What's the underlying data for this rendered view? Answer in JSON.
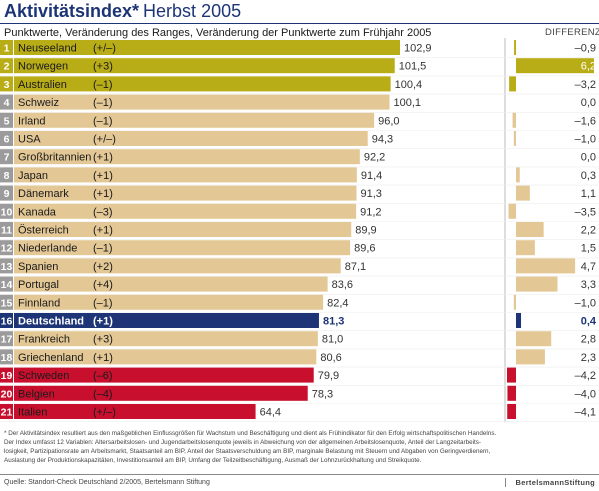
{
  "header": {
    "title_main": "Aktivitätsindex*",
    "title_sub": "Herbst 2005",
    "subtitle": "Punktwerte, Veränderung des Ranges, Veränderung der Punktwerte zum Frühjahr 2005",
    "diff_label": "DIFFERENZ"
  },
  "colors": {
    "beige": "#e3c896",
    "gold": "#b9ad17",
    "navy": "#1d3576",
    "red": "#c8102e",
    "rank_gray": "#9b9b9b",
    "rank_gold": "#b9ad17",
    "rank_navy": "#1d3576",
    "rank_red": "#c8102e"
  },
  "chart_data": {
    "type": "bar",
    "title": "Aktivitätsindex* Herbst 2005",
    "subtitle": "Punktwerte, Veränderung des Ranges, Veränderung der Punktwerte zum Frühjahr 2005",
    "value_scale_reference": 102.9,
    "diff_label": "DIFFERENZ",
    "diff_scale_max_abs": 6.2,
    "rows": [
      {
        "rank": "1",
        "country": "Neuseeland",
        "rank_change": "(+/–)",
        "value": 102.9,
        "value_label": "102,9",
        "diff": -0.9,
        "diff_label": "–0,9",
        "color": "gold",
        "rank_color": "rank_gold"
      },
      {
        "rank": "2",
        "country": "Norwegen",
        "rank_change": "(+3)",
        "value": 101.5,
        "value_label": "101,5",
        "diff": 6.2,
        "diff_label": "6,2",
        "color": "gold",
        "rank_color": "rank_gold"
      },
      {
        "rank": "3",
        "country": "Australien",
        "rank_change": "(–1)",
        "value": 100.4,
        "value_label": "100,4",
        "diff": -3.2,
        "diff_label": "–3,2",
        "color": "gold",
        "rank_color": "rank_gold"
      },
      {
        "rank": "4",
        "country": "Schweiz",
        "rank_change": "(–1)",
        "value": 100.1,
        "value_label": "100,1",
        "diff": 0.0,
        "diff_label": "0,0",
        "color": "beige",
        "rank_color": "rank_gray"
      },
      {
        "rank": "5",
        "country": "Irland",
        "rank_change": "(–1)",
        "value": 96.0,
        "value_label": "96,0",
        "diff": -1.6,
        "diff_label": "–1,6",
        "color": "beige",
        "rank_color": "rank_gray"
      },
      {
        "rank": "6",
        "country": "USA",
        "rank_change": "(+/–)",
        "value": 94.3,
        "value_label": "94,3",
        "diff": -1.0,
        "diff_label": "–1,0",
        "color": "beige",
        "rank_color": "rank_gray"
      },
      {
        "rank": "7",
        "country": "Großbritannien",
        "rank_change": "(+1)",
        "value": 92.2,
        "value_label": "92,2",
        "diff": 0.0,
        "diff_label": "0,0",
        "color": "beige",
        "rank_color": "rank_gray"
      },
      {
        "rank": "8",
        "country": "Japan",
        "rank_change": "(+1)",
        "value": 91.4,
        "value_label": "91,4",
        "diff": 0.3,
        "diff_label": "0,3",
        "color": "beige",
        "rank_color": "rank_gray"
      },
      {
        "rank": "9",
        "country": "Dänemark",
        "rank_change": "(+1)",
        "value": 91.3,
        "value_label": "91,3",
        "diff": 1.1,
        "diff_label": "1,1",
        "color": "beige",
        "rank_color": "rank_gray"
      },
      {
        "rank": "10",
        "country": "Kanada",
        "rank_change": "(–3)",
        "value": 91.2,
        "value_label": "91,2",
        "diff": -3.5,
        "diff_label": "–3,5",
        "color": "beige",
        "rank_color": "rank_gray"
      },
      {
        "rank": "11",
        "country": "Österreich",
        "rank_change": "(+1)",
        "value": 89.9,
        "value_label": "89,9",
        "diff": 2.2,
        "diff_label": "2,2",
        "color": "beige",
        "rank_color": "rank_gray"
      },
      {
        "rank": "12",
        "country": "Niederlande",
        "rank_change": "(–1)",
        "value": 89.6,
        "value_label": "89,6",
        "diff": 1.5,
        "diff_label": "1,5",
        "color": "beige",
        "rank_color": "rank_gray"
      },
      {
        "rank": "13",
        "country": "Spanien",
        "rank_change": "(+2)",
        "value": 87.1,
        "value_label": "87,1",
        "diff": 4.7,
        "diff_label": "4,7",
        "color": "beige",
        "rank_color": "rank_gray"
      },
      {
        "rank": "14",
        "country": "Portugal",
        "rank_change": "(+4)",
        "value": 83.6,
        "value_label": "83,6",
        "diff": 3.3,
        "diff_label": "3,3",
        "color": "beige",
        "rank_color": "rank_gray"
      },
      {
        "rank": "15",
        "country": "Finnland",
        "rank_change": "(–1)",
        "value": 82.4,
        "value_label": "82,4",
        "diff": -1.0,
        "diff_label": "–1,0",
        "color": "beige",
        "rank_color": "rank_gray"
      },
      {
        "rank": "16",
        "country": "Deutschland",
        "rank_change": "(+1)",
        "value": 81.3,
        "value_label": "81,3",
        "diff": 0.4,
        "diff_label": "0,4",
        "color": "navy",
        "rank_color": "rank_navy",
        "highlight": true
      },
      {
        "rank": "17",
        "country": "Frankreich",
        "rank_change": "(+3)",
        "value": 81.0,
        "value_label": "81,0",
        "diff": 2.8,
        "diff_label": "2,8",
        "color": "beige",
        "rank_color": "rank_gray"
      },
      {
        "rank": "18",
        "country": "Griechenland",
        "rank_change": "(+1)",
        "value": 80.6,
        "value_label": "80,6",
        "diff": 2.3,
        "diff_label": "2,3",
        "color": "beige",
        "rank_color": "rank_gray"
      },
      {
        "rank": "19",
        "country": "Schweden",
        "rank_change": "(–6)",
        "value": 79.9,
        "value_label": "79,9",
        "diff": -4.2,
        "diff_label": "–4,2",
        "color": "red",
        "rank_color": "rank_red"
      },
      {
        "rank": "20",
        "country": "Belgien",
        "rank_change": "(–4)",
        "value": 78.3,
        "value_label": "78,3",
        "diff": -4.0,
        "diff_label": "–4,0",
        "color": "red",
        "rank_color": "rank_red"
      },
      {
        "rank": "21",
        "country": "Italien",
        "rank_change": "(+/–)",
        "value": 64.4,
        "value_label": "64,4",
        "diff": -4.1,
        "diff_label": "–4,1",
        "color": "red",
        "rank_color": "rank_red"
      }
    ]
  },
  "footnote": {
    "line1": "* Der Aktivitätsindex resultiert aus den maßgeblichen Einflussgrößen für Wachstum und Beschäftigung und dient als Frühindikator für den Erfolg wirtschaftspolitischen Handelns.",
    "line2": "Der Index umfasst 12 Variablen: Altersarbeitslosen- und Jugendarbeitslosenquote jeweils in Abweichung von der allgemeinen Arbeitslosenquote, Anteil der Langzeitarbeits-",
    "line3": "losigkeit, Partizipationsrate am Arbeitsmarkt, Staatsanteil am BIP, Anteil der Staatsverschuldung am BIP, marginale Belastung mit Steuern und Abgaben von Geringverdienern,",
    "line4": "Auslastung der Produktionskapazitäten, Investitionsanteil am BIP, Umfang der Teilzeitbeschäftigung, Ausmaß der Lohnzurückhaltung und Streikquote."
  },
  "source": "Quelle: Standort-Check Deutschland 2/2005, Bertelsmann Stiftung",
  "logo": "BertelsmannStiftung"
}
